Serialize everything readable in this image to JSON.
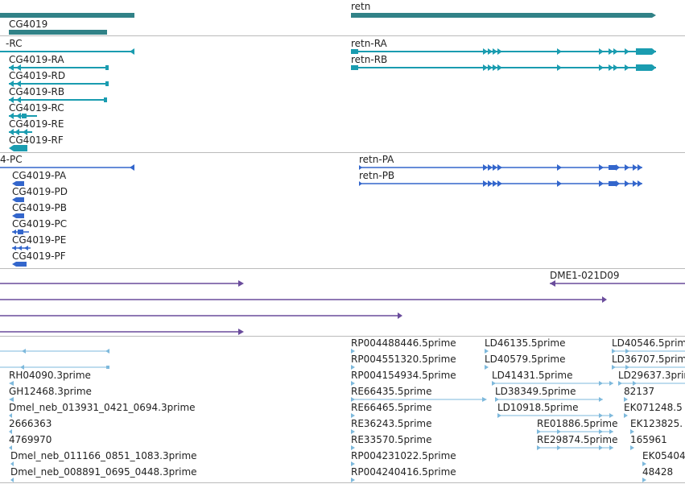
{
  "colors": {
    "gene": "#318287",
    "transcript": "#1a9cb0",
    "protein": "#3366cc",
    "clone": "#6a4c9c",
    "est": "#7eb9dc",
    "divider": "#bbbbbb",
    "label": "#222222"
  },
  "tracks": {
    "genes": {
      "features": [
        {
          "label": "",
          "shape": "thick"
        },
        {
          "label": "retn",
          "shape": "thick"
        },
        {
          "label": "CG4019",
          "shape": "thick"
        }
      ]
    },
    "transcripts": {
      "features": [
        {
          "label": "-RC",
          "shape": "line"
        },
        {
          "label": "retn-RA",
          "shape": "exons"
        },
        {
          "label": "retn-RB",
          "shape": "exons"
        },
        {
          "label": "CG4019-RA",
          "shape": "line"
        },
        {
          "label": "CG4019-RD",
          "shape": "line"
        },
        {
          "label": "CG4019-RB",
          "shape": "line"
        },
        {
          "label": "CG4019-RC",
          "shape": "small"
        },
        {
          "label": "CG4019-RE",
          "shape": "small"
        },
        {
          "label": "CG4019-RF",
          "shape": "small"
        }
      ]
    },
    "proteins": {
      "features": [
        {
          "label": "4-PC",
          "shape": "line"
        },
        {
          "label": "retn-PA",
          "shape": "exons"
        },
        {
          "label": "retn-PB",
          "shape": "exons"
        },
        {
          "label": "CG4019-PA",
          "shape": "small"
        },
        {
          "label": "CG4019-PD",
          "shape": "small"
        },
        {
          "label": "CG4019-PB",
          "shape": "small"
        },
        {
          "label": "CG4019-PC",
          "shape": "small"
        },
        {
          "label": "CG4019-PE",
          "shape": "small"
        },
        {
          "label": "CG4019-PF",
          "shape": "small"
        }
      ]
    },
    "clones": {
      "features": [
        {
          "label": "DME1-021D09",
          "shape": "line"
        },
        {
          "label": "",
          "shape": "line"
        },
        {
          "label": "",
          "shape": "line"
        },
        {
          "label": "",
          "shape": "line"
        },
        {
          "label": "",
          "shape": "line"
        }
      ]
    },
    "ests": {
      "labels_left": [
        "RH04090.3prime",
        "GH12468.3prime",
        "Dmel_neb_013931_0421_0694.3prime",
        "2666363",
        "4769970",
        "Dmel_neb_011166_0851_1083.3prime",
        "Dmel_neb_008891_0695_0448.3prime"
      ],
      "labels_mid": [
        "RP004488446.5prime",
        "RP004551320.5prime",
        "RP004154934.5prime",
        "RE66435.5prime",
        "RE66465.5prime",
        "RE36243.5prime",
        "RE33570.5prime",
        "RP004231022.5prime",
        "RP004240416.5prime"
      ],
      "labels_right": [
        "LD46135.5prime",
        "LD40579.5prime",
        "LD41431.5prime",
        "LD38349.5prime",
        "LD10918.5prime",
        "RE01886.5prime",
        "RE29874.5prime"
      ],
      "labels_far": [
        "LD40546.5prim",
        "LD36707.5prim",
        "LD29637.3prim",
        "82137",
        "EK071248.5",
        "EK123825.",
        "165961",
        "EK05404",
        "48428"
      ]
    }
  }
}
